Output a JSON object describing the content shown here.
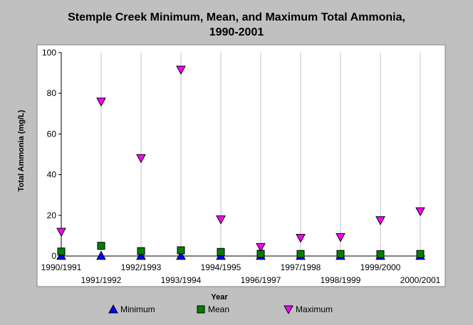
{
  "chart_data": {
    "type": "scatter",
    "title_line1": "Stemple Creek Minimum, Mean, and Maximum Total Ammonia,",
    "title_line2": "1990-2001",
    "xlabel": "Year",
    "ylabel": "Total Ammonia (mg/L)",
    "ylim": [
      0,
      100
    ],
    "yticks": [
      0,
      20,
      40,
      60,
      80,
      100
    ],
    "grid": "vertical",
    "legend_position": "bottom",
    "categories": [
      "1990/1991",
      "1991/1992",
      "1992/1993",
      "1993/1994",
      "1994/1995",
      "1996/1997",
      "1997/1998",
      "1998/1999",
      "1999/2000",
      "2000/2001"
    ],
    "series": [
      {
        "name": "Minimum",
        "marker": "triangle-up",
        "color": "#0000ff",
        "values": [
          0.1,
          0.1,
          0.1,
          0.1,
          0.1,
          0.1,
          0.1,
          0.1,
          0.1,
          0.1
        ]
      },
      {
        "name": "Mean",
        "marker": "square",
        "color": "#008000",
        "values": [
          2.2,
          5,
          2.4,
          2.8,
          2,
          1.1,
          1,
          1,
          0.9,
          1
        ]
      },
      {
        "name": "Maximum",
        "marker": "triangle-down",
        "color": "#ff00ff",
        "values": [
          11.9,
          75.9,
          48.1,
          91.6,
          18,
          4.4,
          8.9,
          9.3,
          17.6,
          22
        ]
      }
    ]
  }
}
